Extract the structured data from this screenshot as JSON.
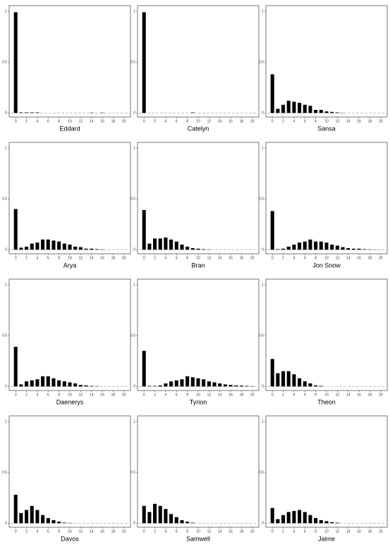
{
  "chart_data": [
    {
      "type": "bar",
      "xlabel": "Eddard",
      "x": [
        0,
        1,
        2,
        3,
        4,
        5,
        6,
        7,
        8,
        9,
        10,
        11,
        12,
        13,
        14,
        15,
        16,
        17,
        18,
        19,
        20
      ],
      "values": [
        0.99,
        0.005,
        0.005,
        0.005,
        0.005,
        0,
        0,
        0,
        0,
        0,
        0,
        0,
        0,
        0,
        0.003,
        0,
        0.003,
        0,
        0,
        0,
        0
      ],
      "color": "#000000",
      "xlim": [
        -1.2,
        21.2
      ],
      "ylim": [
        -0.04,
        1.055
      ],
      "xticks": [
        0,
        2,
        4,
        6,
        8,
        10,
        12,
        14,
        16,
        18,
        20
      ],
      "yticks": [
        0,
        0.5,
        1
      ]
    },
    {
      "type": "bar",
      "xlabel": "Catelyn",
      "x": [
        0,
        1,
        2,
        3,
        4,
        5,
        6,
        7,
        8,
        9,
        10,
        11,
        12,
        13,
        14,
        15,
        16,
        17,
        18,
        19,
        20
      ],
      "values": [
        0.99,
        0,
        0,
        0,
        0,
        0,
        0,
        0,
        0,
        0.005,
        0,
        0,
        0,
        0,
        0,
        0,
        0,
        0,
        0,
        0,
        0
      ],
      "color": "#000000",
      "xlim": [
        -1.2,
        21.2
      ],
      "ylim": [
        -0.04,
        1.055
      ],
      "xticks": [
        0,
        2,
        4,
        6,
        8,
        10,
        12,
        14,
        16,
        18,
        20
      ],
      "yticks": [
        0,
        0.5,
        1
      ]
    },
    {
      "type": "bar",
      "xlabel": "Sansa",
      "x": [
        0,
        1,
        2,
        3,
        4,
        5,
        6,
        7,
        8,
        9,
        10,
        11,
        12,
        13,
        14,
        15,
        16,
        17,
        18,
        19,
        20
      ],
      "values": [
        0.38,
        0.04,
        0.08,
        0.12,
        0.11,
        0.1,
        0.08,
        0.07,
        0.03,
        0.03,
        0.015,
        0.01,
        0.005,
        0.002,
        0,
        0,
        0,
        0,
        0,
        0,
        0
      ],
      "color": "#000000",
      "xlim": [
        -1.2,
        21.2
      ],
      "ylim": [
        -0.04,
        1.055
      ],
      "xticks": [
        0,
        2,
        4,
        6,
        8,
        10,
        12,
        14,
        16,
        18,
        20
      ],
      "yticks": [
        0,
        0.5,
        1
      ]
    },
    {
      "type": "bar",
      "xlabel": "Arya",
      "x": [
        0,
        1,
        2,
        3,
        4,
        5,
        6,
        7,
        8,
        9,
        10,
        11,
        12,
        13,
        14,
        15,
        16,
        17,
        18,
        19,
        20
      ],
      "values": [
        0.4,
        0.02,
        0.03,
        0.06,
        0.07,
        0.1,
        0.1,
        0.09,
        0.08,
        0.06,
        0.05,
        0.03,
        0.025,
        0.01,
        0.01,
        0.005,
        0.003,
        0,
        0,
        0,
        0
      ],
      "color": "#000000",
      "xlim": [
        -1.2,
        21.2
      ],
      "ylim": [
        -0.04,
        1.055
      ],
      "xticks": [
        0,
        2,
        4,
        6,
        8,
        10,
        12,
        14,
        16,
        18,
        20
      ],
      "yticks": [
        0,
        0.5,
        1
      ]
    },
    {
      "type": "bar",
      "xlabel": "Bran",
      "x": [
        0,
        1,
        2,
        3,
        4,
        5,
        6,
        7,
        8,
        9,
        10,
        11,
        12,
        13,
        14,
        15,
        16,
        17,
        18,
        19,
        20
      ],
      "values": [
        0.39,
        0.06,
        0.11,
        0.11,
        0.12,
        0.1,
        0.08,
        0.05,
        0.03,
        0.015,
        0.01,
        0.005,
        0.003,
        0,
        0,
        0,
        0,
        0,
        0,
        0,
        0
      ],
      "color": "#000000",
      "xlim": [
        -1.2,
        21.2
      ],
      "ylim": [
        -0.04,
        1.055
      ],
      "xticks": [
        0,
        2,
        4,
        6,
        8,
        10,
        12,
        14,
        16,
        18,
        20
      ],
      "yticks": [
        0,
        0.5,
        1
      ]
    },
    {
      "type": "bar",
      "xlabel": "Jon Snow",
      "x": [
        0,
        1,
        2,
        3,
        4,
        5,
        6,
        7,
        8,
        9,
        10,
        11,
        12,
        13,
        14,
        15,
        16,
        17,
        18,
        19,
        20
      ],
      "values": [
        0.38,
        0.005,
        0.01,
        0.03,
        0.05,
        0.07,
        0.08,
        0.1,
        0.08,
        0.08,
        0.07,
        0.05,
        0.04,
        0.025,
        0.015,
        0.01,
        0.01,
        0.005,
        0.003,
        0.002,
        0.001
      ],
      "color": "#000000",
      "xlim": [
        -1.2,
        21.2
      ],
      "ylim": [
        -0.04,
        1.055
      ],
      "xticks": [
        0,
        2,
        4,
        6,
        8,
        10,
        12,
        14,
        16,
        18,
        20
      ],
      "yticks": [
        0,
        0.5,
        1
      ]
    },
    {
      "type": "bar",
      "xlabel": "Daenerys",
      "x": [
        0,
        1,
        2,
        3,
        4,
        5,
        6,
        7,
        8,
        9,
        10,
        11,
        12,
        13,
        14,
        15,
        16,
        17,
        18,
        19,
        20
      ],
      "values": [
        0.39,
        0.02,
        0.05,
        0.06,
        0.07,
        0.1,
        0.1,
        0.08,
        0.06,
        0.05,
        0.04,
        0.03,
        0.015,
        0.01,
        0.005,
        0.003,
        0,
        0,
        0,
        0,
        0
      ],
      "color": "#000000",
      "xlim": [
        -1.2,
        21.2
      ],
      "ylim": [
        -0.04,
        1.055
      ],
      "xticks": [
        0,
        2,
        4,
        6,
        8,
        10,
        12,
        14,
        16,
        18,
        20
      ],
      "yticks": [
        0,
        0.5,
        1
      ]
    },
    {
      "type": "bar",
      "xlabel": "Tyrion",
      "x": [
        0,
        1,
        2,
        3,
        4,
        5,
        6,
        7,
        8,
        9,
        10,
        11,
        12,
        13,
        14,
        15,
        16,
        17,
        18,
        19,
        20
      ],
      "values": [
        0.35,
        0.005,
        0.005,
        0.01,
        0.03,
        0.05,
        0.06,
        0.07,
        0.1,
        0.09,
        0.08,
        0.07,
        0.05,
        0.04,
        0.03,
        0.02,
        0.015,
        0.01,
        0.008,
        0.005,
        0.003
      ],
      "color": "#000000",
      "xlim": [
        -1.2,
        21.2
      ],
      "ylim": [
        -0.04,
        1.055
      ],
      "xticks": [
        0,
        2,
        4,
        6,
        8,
        10,
        12,
        14,
        16,
        18,
        20
      ],
      "yticks": [
        0,
        0.5,
        1
      ]
    },
    {
      "type": "bar",
      "xlabel": "Theon",
      "x": [
        0,
        1,
        2,
        3,
        4,
        5,
        6,
        7,
        8,
        9,
        10,
        11,
        12,
        13,
        14,
        15,
        16,
        17,
        18,
        19,
        20
      ],
      "values": [
        0.27,
        0.13,
        0.15,
        0.15,
        0.12,
        0.08,
        0.05,
        0.03,
        0.01,
        0.005,
        0,
        0,
        0,
        0,
        0,
        0,
        0,
        0,
        0,
        0,
        0
      ],
      "color": "#000000",
      "xlim": [
        -1.2,
        21.2
      ],
      "ylim": [
        -0.04,
        1.055
      ],
      "xticks": [
        0,
        2,
        4,
        6,
        8,
        10,
        12,
        14,
        16,
        18,
        20
      ],
      "yticks": [
        0,
        0.5,
        1
      ]
    },
    {
      "type": "bar",
      "xlabel": "Davos",
      "x": [
        0,
        1,
        2,
        3,
        4,
        5,
        6,
        7,
        8,
        9,
        10,
        11,
        12,
        13,
        14,
        15,
        16,
        17,
        18,
        19,
        20
      ],
      "values": [
        0.28,
        0.1,
        0.13,
        0.17,
        0.13,
        0.08,
        0.05,
        0.03,
        0.015,
        0.005,
        0.003,
        0,
        0,
        0,
        0,
        0,
        0,
        0,
        0,
        0,
        0
      ],
      "color": "#000000",
      "xlim": [
        -1.2,
        21.2
      ],
      "ylim": [
        -0.04,
        1.055
      ],
      "xticks": [
        0,
        2,
        4,
        6,
        8,
        10,
        12,
        14,
        16,
        18,
        20
      ],
      "yticks": [
        0,
        0.5,
        1
      ]
    },
    {
      "type": "bar",
      "xlabel": "Samwell",
      "x": [
        0,
        1,
        2,
        3,
        4,
        5,
        6,
        7,
        8,
        9,
        10,
        11,
        12,
        13,
        14,
        15,
        16,
        17,
        18,
        19,
        20
      ],
      "values": [
        0.17,
        0.11,
        0.19,
        0.17,
        0.14,
        0.09,
        0.06,
        0.03,
        0.015,
        0.005,
        0,
        0,
        0,
        0,
        0,
        0,
        0,
        0,
        0,
        0,
        0
      ],
      "color": "#000000",
      "xlim": [
        -1.2,
        21.2
      ],
      "ylim": [
        -0.04,
        1.055
      ],
      "xticks": [
        0,
        2,
        4,
        6,
        8,
        10,
        12,
        14,
        16,
        18,
        20
      ],
      "yticks": [
        0,
        0.5,
        1
      ]
    },
    {
      "type": "bar",
      "xlabel": "Jaime",
      "x": [
        0,
        1,
        2,
        3,
        4,
        5,
        6,
        7,
        8,
        9,
        10,
        11,
        12,
        13,
        14,
        15,
        16,
        17,
        18,
        19,
        20
      ],
      "values": [
        0.15,
        0.04,
        0.08,
        0.11,
        0.12,
        0.13,
        0.11,
        0.08,
        0.05,
        0.03,
        0.02,
        0.01,
        0.005,
        0,
        0,
        0,
        0,
        0,
        0,
        0,
        0
      ],
      "color": "#000000",
      "xlim": [
        -1.2,
        21.2
      ],
      "ylim": [
        -0.04,
        1.055
      ],
      "xticks": [
        0,
        2,
        4,
        6,
        8,
        10,
        12,
        14,
        16,
        18,
        20
      ],
      "yticks": [
        0,
        0.5,
        1
      ]
    }
  ]
}
